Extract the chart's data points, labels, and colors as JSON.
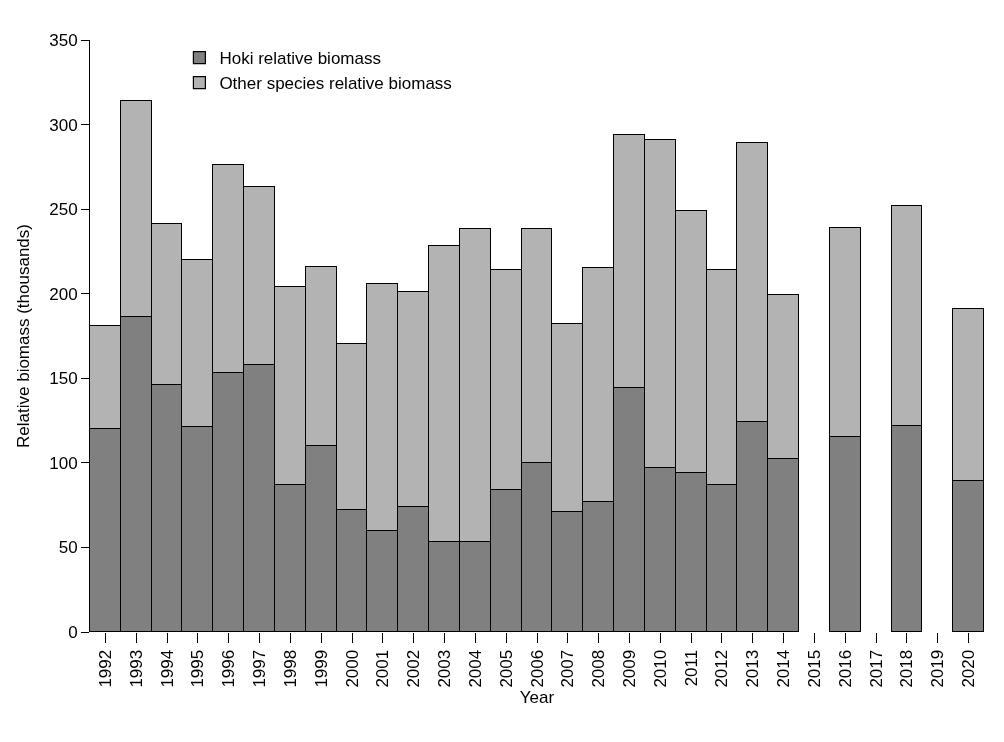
{
  "chart_data": {
    "type": "bar",
    "stacked": true,
    "xlabel": "Year",
    "ylabel": "Relative biomass (thousands)",
    "categories": [
      "1992",
      "1993",
      "1994",
      "1995",
      "1996",
      "1997",
      "1998",
      "1999",
      "2000",
      "2001",
      "2002",
      "2003",
      "2004",
      "2005",
      "2006",
      "2007",
      "2008",
      "2009",
      "2010",
      "2011",
      "2012",
      "2013",
      "2014",
      "2015",
      "2016",
      "2017",
      "2018",
      "2019",
      "2020"
    ],
    "series": [
      {
        "name": "Hoki relative biomass",
        "color": "#808080",
        "values": [
          120,
          186,
          146,
          121,
          153,
          158,
          87,
          110,
          72,
          60,
          74,
          53,
          53,
          84,
          100,
          71,
          77,
          144,
          97,
          94,
          87,
          124,
          102,
          null,
          115,
          null,
          122,
          null,
          89
        ]
      },
      {
        "name": "Other species relative biomass",
        "color": "#b3b3b3",
        "values": [
          61,
          128,
          95,
          99,
          123,
          105,
          117,
          106,
          98,
          146,
          127,
          175,
          185,
          130,
          138,
          111,
          138,
          150,
          194,
          155,
          127,
          165,
          97,
          null,
          124,
          null,
          130,
          null,
          102
        ]
      }
    ],
    "ylim": [
      0,
      350
    ],
    "yticks": [
      0,
      50,
      100,
      150,
      200,
      250,
      300,
      350
    ],
    "legend": "top left"
  }
}
